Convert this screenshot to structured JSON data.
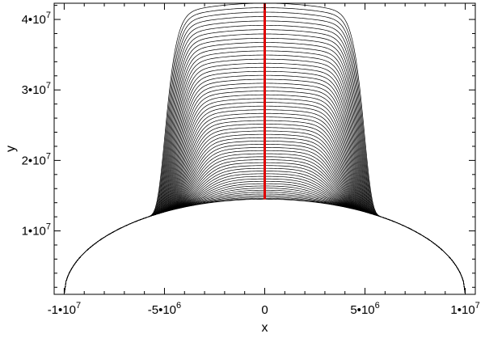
{
  "chart_data": {
    "type": "line",
    "title": "",
    "xlabel": "x",
    "ylabel": "y",
    "xlim": [
      -10500000,
      10500000
    ],
    "ylim": [
      1000000,
      42300000
    ],
    "grid": false,
    "legend": "none",
    "x_ticks": [
      {
        "value": -10000000,
        "label_base": "-1•10",
        "label_exp": "7"
      },
      {
        "value": -5000000,
        "label_base": "-5•10",
        "label_exp": "6"
      },
      {
        "value": 0,
        "label_base": "0",
        "label_exp": ""
      },
      {
        "value": 5000000,
        "label_base": "5•10",
        "label_exp": "6"
      },
      {
        "value": 10000000,
        "label_base": "1•10",
        "label_exp": "7"
      }
    ],
    "y_ticks": [
      {
        "value": 10000000,
        "label_base": "1•10",
        "label_exp": "7"
      },
      {
        "value": 20000000,
        "label_base": "2•10",
        "label_exp": "7"
      },
      {
        "value": 30000000,
        "label_base": "3•10",
        "label_exp": "7"
      },
      {
        "value": 40000000,
        "label_base": "4•10",
        "label_exp": "7"
      }
    ],
    "curve_family": {
      "count": 60,
      "x_extent": 10000000,
      "base_height": 14500000,
      "base_at_edge": 1000000,
      "peak_heights": {
        "min": 14500000,
        "max": 42300000
      }
    },
    "vertical_line": {
      "x": 0,
      "y_range": [
        14500000,
        42300000
      ]
    },
    "colors": {
      "curves": "#000000",
      "vertical_line": "#e00000",
      "axes": "#000000",
      "background": "#ffffff"
    }
  }
}
